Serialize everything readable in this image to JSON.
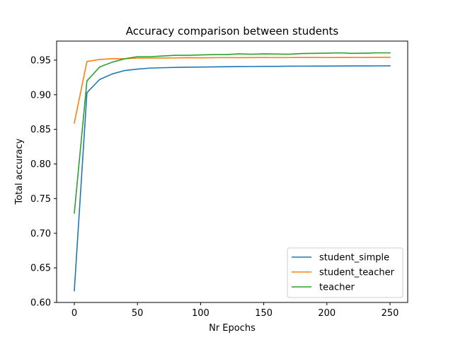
{
  "chart_data": {
    "type": "line",
    "title": "Accuracy comparison between students",
    "xlabel": "Nr Epochs",
    "ylabel": "Total accuracy",
    "xlim": [
      -14,
      264
    ],
    "ylim": [
      0.6,
      0.9775
    ],
    "xticks": [
      0,
      50,
      100,
      150,
      200,
      250
    ],
    "yticks": [
      0.6,
      0.65,
      0.7,
      0.75,
      0.8,
      0.85,
      0.9,
      0.95
    ],
    "grid": false,
    "legend_position": "lower-right",
    "x": [
      0,
      10,
      20,
      30,
      40,
      50,
      60,
      70,
      80,
      90,
      100,
      110,
      120,
      130,
      140,
      150,
      160,
      170,
      180,
      190,
      200,
      210,
      220,
      230,
      240,
      250
    ],
    "series": [
      {
        "name": "student_simple",
        "color": "#1f77b4",
        "values": [
          0.617,
          0.903,
          0.922,
          0.93,
          0.935,
          0.937,
          0.9385,
          0.939,
          0.9395,
          0.9398,
          0.94,
          0.9402,
          0.9405,
          0.9407,
          0.9408,
          0.941,
          0.941,
          0.9412,
          0.9413,
          0.9414,
          0.9414,
          0.9415,
          0.9416,
          0.9416,
          0.9417,
          0.9418
        ]
      },
      {
        "name": "student_teacher",
        "color": "#ff7f0e",
        "values": [
          0.859,
          0.948,
          0.951,
          0.952,
          0.952,
          0.953,
          0.953,
          0.953,
          0.9532,
          0.9535,
          0.9533,
          0.9535,
          0.9537,
          0.9535,
          0.9536,
          0.9538,
          0.9536,
          0.9537,
          0.9538,
          0.9539,
          0.9537,
          0.9538,
          0.9539,
          0.9538,
          0.954,
          0.954
        ]
      },
      {
        "name": "teacher",
        "color": "#2ca02c",
        "values": [
          0.729,
          0.92,
          0.94,
          0.947,
          0.952,
          0.955,
          0.955,
          0.956,
          0.957,
          0.957,
          0.9575,
          0.958,
          0.958,
          0.959,
          0.9585,
          0.959,
          0.9588,
          0.9585,
          0.9595,
          0.9598,
          0.96,
          0.9605,
          0.9598,
          0.96,
          0.9605,
          0.9605
        ]
      }
    ]
  }
}
